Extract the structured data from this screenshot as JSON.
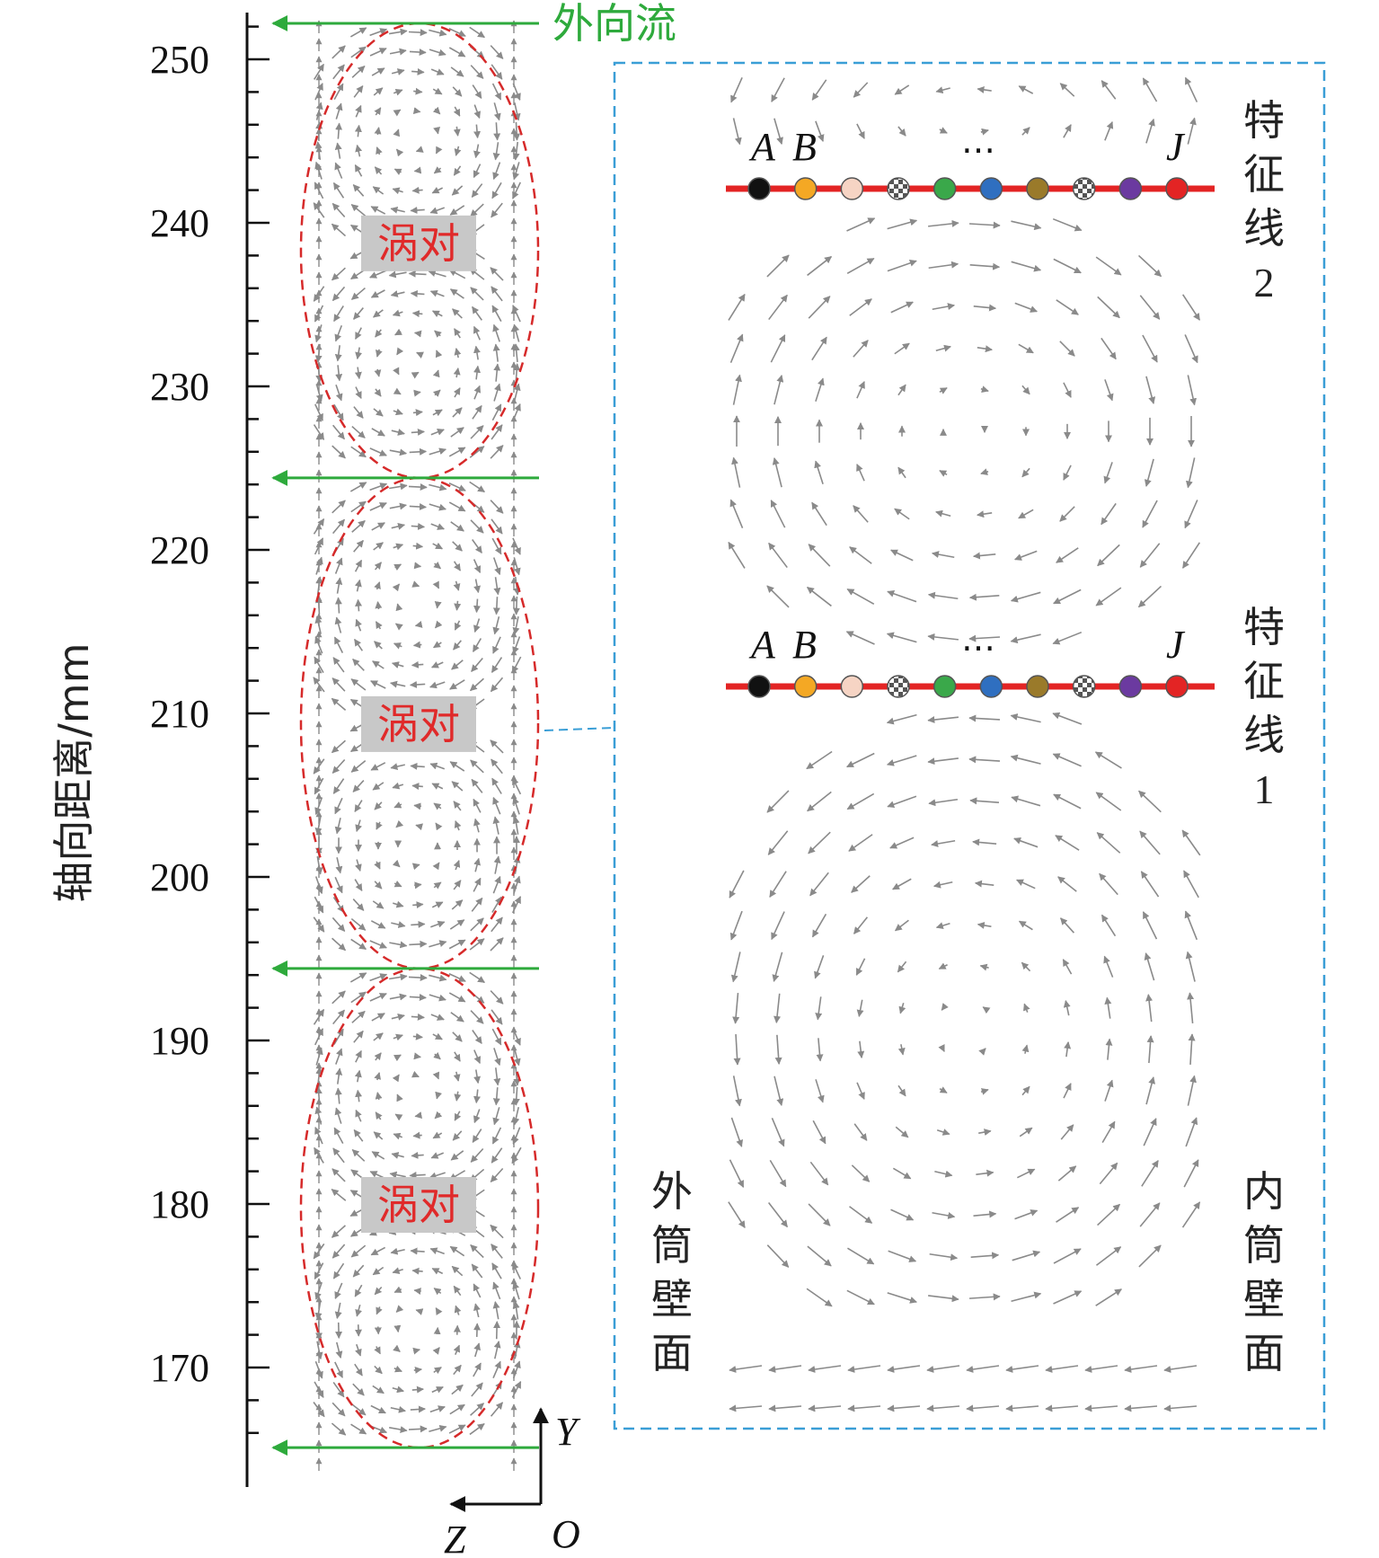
{
  "axis": {
    "label": "轴向距离/mm",
    "ticks": [
      170,
      180,
      190,
      200,
      210,
      220,
      230,
      240,
      250
    ],
    "range": [
      164,
      255
    ]
  },
  "outflow_label": "外向流",
  "outflow_positions": [
    252.2,
    224.4,
    194.4,
    165.1
  ],
  "vortex_pair_label": "涡对",
  "vortex_pairs": [
    {
      "label": "涡对",
      "center": 238.8,
      "span": [
        224.4,
        252.2
      ]
    },
    {
      "label": "涡对",
      "center": 209.4,
      "span": [
        194.4,
        224.4
      ]
    },
    {
      "label": "涡对",
      "center": 180.0,
      "span": [
        165.1,
        194.4
      ]
    }
  ],
  "coordinate_axes": {
    "y": "Y",
    "z": "Z",
    "origin": "O"
  },
  "zoom": {
    "feature_lines": [
      {
        "label": "特征线2",
        "chars": [
          "特",
          "征",
          "线",
          "2"
        ]
      },
      {
        "label": "特征线1",
        "chars": [
          "特",
          "征",
          "线",
          "1"
        ]
      }
    ],
    "point_labels": {
      "first": "A",
      "second": "B",
      "ellipsis": "…",
      "last": "J"
    },
    "points": [
      {
        "color": "#111111",
        "pattern": "solid"
      },
      {
        "color": "#f4a824",
        "pattern": "solid"
      },
      {
        "color": "#f6d4c4",
        "pattern": "solid"
      },
      {
        "color": "#7d7d7d",
        "pattern": "checker"
      },
      {
        "color": "#3aa84a",
        "pattern": "solid"
      },
      {
        "color": "#2f6fc0",
        "pattern": "solid"
      },
      {
        "color": "#9a7a2a",
        "pattern": "solid"
      },
      {
        "color": "#b8b8b8",
        "pattern": "checker"
      },
      {
        "color": "#6b3aa0",
        "pattern": "solid"
      },
      {
        "color": "#e32424",
        "pattern": "solid"
      }
    ],
    "outer_wall": {
      "label": "外筒壁面",
      "chars": [
        "外",
        "筒",
        "壁",
        "面"
      ]
    },
    "inner_wall": {
      "label": "内筒壁面",
      "chars": [
        "内",
        "筒",
        "壁",
        "面"
      ]
    }
  },
  "colors": {
    "arrow": "#8a8a8a",
    "outflow": "#2eaa3c",
    "dashed_ellipse": "#d62a2a",
    "feature_line": "#e32424",
    "zoom_box": "#3a9ed6",
    "vortex_label_bg": "#c8c8c8",
    "vortex_label_text": "#e02a2a"
  }
}
